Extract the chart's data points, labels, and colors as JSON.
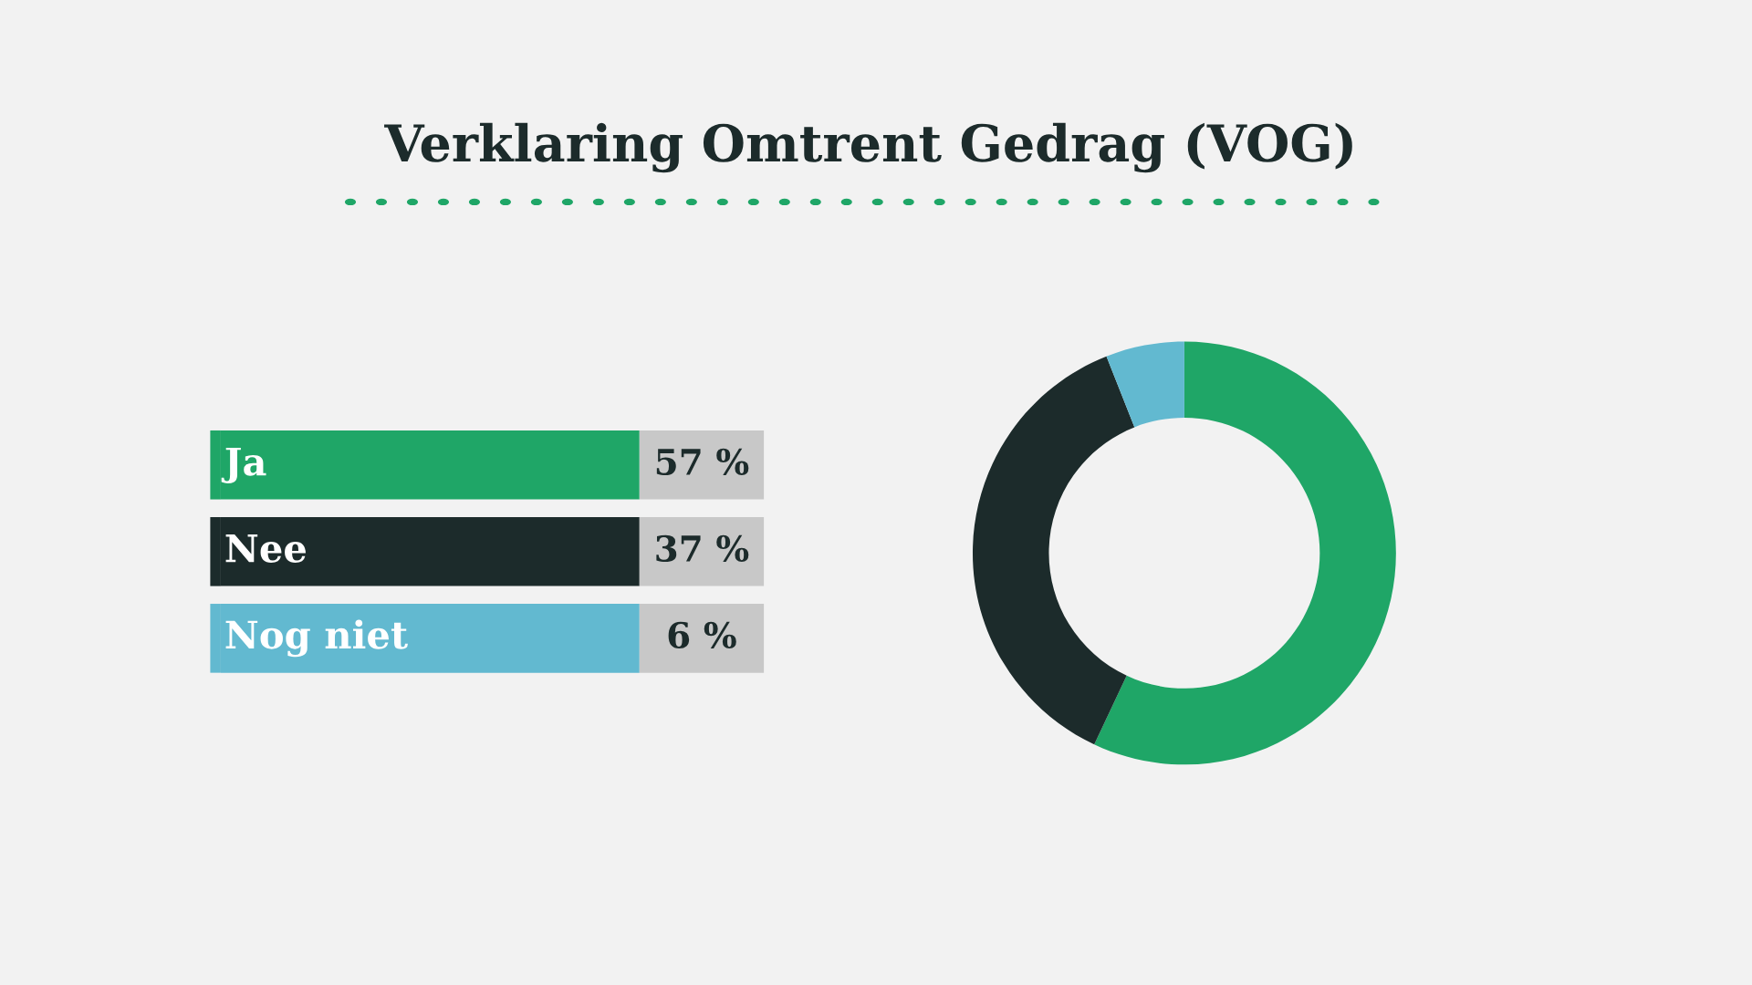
{
  "chart_data": {
    "type": "donut",
    "title": "Verklaring Omtrent Gedrag (VOG)",
    "categories": [
      "Ja",
      "Nee",
      "Nog niet"
    ],
    "values": [
      57,
      37,
      6
    ],
    "colors": [
      "#1fa667",
      "#1c2b2b",
      "#62b9d0"
    ],
    "value_labels": [
      "57 %",
      "37 %",
      "6 %"
    ],
    "legend": "left"
  }
}
